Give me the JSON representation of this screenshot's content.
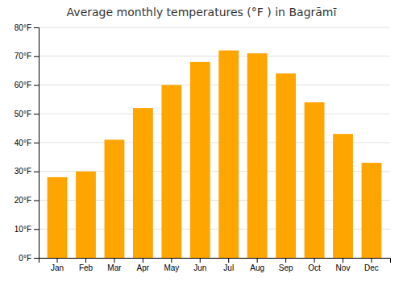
{
  "chart_data": {
    "type": "bar",
    "title": "Average monthly temperatures (°F ) in Bagrāmī",
    "categories": [
      "Jan",
      "Feb",
      "Mar",
      "Apr",
      "May",
      "Jun",
      "Jul",
      "Aug",
      "Sep",
      "Oct",
      "Nov",
      "Dec"
    ],
    "values": [
      28,
      30,
      41,
      52,
      60,
      68,
      72,
      71,
      64,
      54,
      43,
      33
    ],
    "color": "#FFA500",
    "ylim": [
      0,
      80
    ],
    "yticks": [
      {
        "value": 0,
        "label": "0°F"
      },
      {
        "value": 10,
        "label": "10°F"
      },
      {
        "value": 20,
        "label": "20°F"
      },
      {
        "value": 30,
        "label": "30°F"
      },
      {
        "value": 40,
        "label": "40°F"
      },
      {
        "value": 50,
        "label": "50°F"
      },
      {
        "value": 60,
        "label": "60°F"
      },
      {
        "value": 70,
        "label": "70°F"
      },
      {
        "value": 80,
        "label": "80°F"
      }
    ],
    "grid": true
  }
}
